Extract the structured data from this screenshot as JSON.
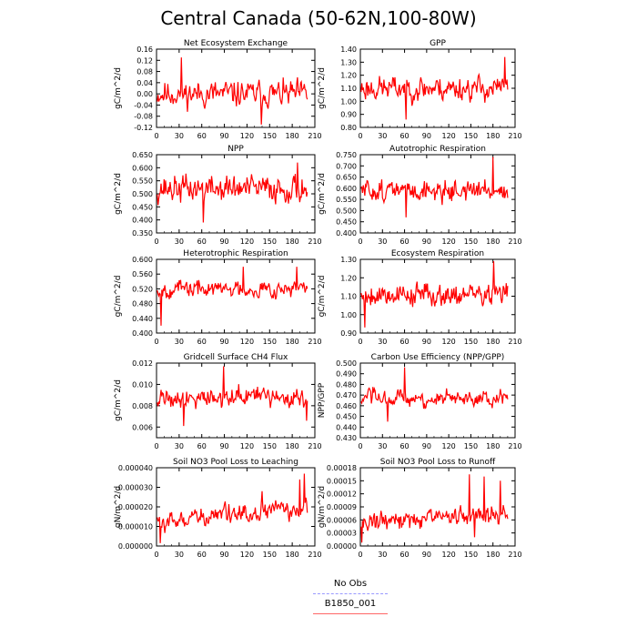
{
  "title": "Central Canada (50-62N,100-80W)",
  "colors": {
    "line": "#ff0000",
    "no_obs": "#9999ff",
    "b1850": "#ff6666"
  },
  "legend": {
    "items": [
      {
        "label": "No Obs",
        "style": "dashed",
        "color": "#9999ff"
      },
      {
        "label": "B1850_001",
        "style": "solid",
        "color": "#ff6666"
      }
    ]
  },
  "chart_data": [
    {
      "type": "line",
      "title": "Net Ecosystem Exchange",
      "ylabel": "gC/m^2/d",
      "xlim": [
        0,
        210
      ],
      "ylim": [
        -0.12,
        0.16
      ],
      "xticks": [
        0,
        30,
        60,
        90,
        120,
        150,
        180,
        210
      ],
      "yticks": [
        -0.12,
        -0.08,
        -0.04,
        0.0,
        0.04,
        0.08,
        0.12,
        0.16
      ],
      "yticklabels": [
        "-0.12",
        "-0.08",
        "-0.04",
        "0.00",
        "0.04",
        "0.08",
        "0.12",
        "0.16"
      ],
      "series": [
        {
          "mean": 0.0,
          "amp": 0.045,
          "min": -0.1,
          "max": 0.13,
          "seed": 11,
          "trend": 0,
          "spikes": [
            [
              33,
              0.13
            ],
            [
              139,
              -0.11
            ]
          ]
        }
      ]
    },
    {
      "type": "line",
      "title": "GPP",
      "ylabel": "gC/m^2/d",
      "xlim": [
        0,
        210
      ],
      "ylim": [
        0.8,
        1.4
      ],
      "xticks": [
        0,
        30,
        60,
        90,
        120,
        150,
        180,
        210
      ],
      "yticks": [
        0.8,
        0.9,
        1.0,
        1.1,
        1.2,
        1.3,
        1.4
      ],
      "yticklabels": [
        "0.80",
        "0.90",
        "1.00",
        "1.10",
        "1.20",
        "1.30",
        "1.40"
      ],
      "series": [
        {
          "mean": 1.1,
          "amp": 0.09,
          "min": 0.86,
          "max": 1.34,
          "seed": 23,
          "trend": 0.0,
          "spikes": [
            [
              196,
              1.34
            ],
            [
              62,
              0.86
            ]
          ]
        }
      ]
    },
    {
      "type": "line",
      "title": "NPP",
      "ylabel": "gC/m^2/d",
      "xlim": [
        0,
        210
      ],
      "ylim": [
        0.35,
        0.65
      ],
      "xticks": [
        0,
        30,
        60,
        90,
        120,
        150,
        180,
        210
      ],
      "yticks": [
        0.35,
        0.4,
        0.45,
        0.5,
        0.55,
        0.6,
        0.65
      ],
      "yticklabels": [
        "0.350",
        "0.400",
        "0.450",
        "0.500",
        "0.550",
        "0.600",
        "0.650"
      ],
      "series": [
        {
          "mean": 0.52,
          "amp": 0.05,
          "min": 0.39,
          "max": 0.62,
          "seed": 37,
          "trend": 0,
          "spikes": [
            [
              187,
              0.62
            ],
            [
              62,
              0.39
            ]
          ]
        }
      ]
    },
    {
      "type": "line",
      "title": "Autotrophic Respiration",
      "ylabel": "gC/m^2/d",
      "xlim": [
        0,
        210
      ],
      "ylim": [
        0.4,
        0.75
      ],
      "xticks": [
        0,
        30,
        60,
        90,
        120,
        150,
        180,
        210
      ],
      "yticks": [
        0.4,
        0.45,
        0.5,
        0.55,
        0.6,
        0.65,
        0.7,
        0.75
      ],
      "yticklabels": [
        "0.400",
        "0.450",
        "0.500",
        "0.550",
        "0.600",
        "0.650",
        "0.700",
        "0.750"
      ],
      "series": [
        {
          "mean": 0.59,
          "amp": 0.045,
          "min": 0.47,
          "max": 0.74,
          "seed": 51,
          "trend": 0,
          "spikes": [
            [
              180,
              0.74
            ],
            [
              62,
              0.47
            ]
          ]
        }
      ]
    },
    {
      "type": "line",
      "title": "Heterotrophic Respiration",
      "ylabel": "gC/m^2/d",
      "xlim": [
        0,
        210
      ],
      "ylim": [
        0.4,
        0.6
      ],
      "xticks": [
        0,
        30,
        60,
        90,
        120,
        150,
        180,
        210
      ],
      "yticks": [
        0.4,
        0.44,
        0.48,
        0.52,
        0.56,
        0.6
      ],
      "yticklabels": [
        "0.400",
        "0.440",
        "0.480",
        "0.520",
        "0.560",
        "0.600"
      ],
      "series": [
        {
          "mean": 0.52,
          "amp": 0.022,
          "min": 0.42,
          "max": 0.585,
          "seed": 67,
          "trend": 0,
          "spikes": [
            [
              6,
              0.42
            ],
            [
              115,
              0.58
            ],
            [
              186,
              0.58
            ]
          ]
        }
      ]
    },
    {
      "type": "line",
      "title": "Ecosystem Respiration",
      "ylabel": "gC/m^2/d",
      "xlim": [
        0,
        210
      ],
      "ylim": [
        0.9,
        1.3
      ],
      "xticks": [
        0,
        30,
        60,
        90,
        120,
        150,
        180,
        210
      ],
      "yticks": [
        0.9,
        1.0,
        1.1,
        1.2,
        1.3
      ],
      "yticklabels": [
        "0.90",
        "1.00",
        "1.10",
        "1.20",
        "1.30"
      ],
      "series": [
        {
          "mean": 1.11,
          "amp": 0.06,
          "min": 0.93,
          "max": 1.29,
          "seed": 79,
          "trend": 0,
          "spikes": [
            [
              181,
              1.29
            ],
            [
              6,
              0.93
            ]
          ]
        }
      ]
    },
    {
      "type": "line",
      "title": "Gridcell Surface CH4 Flux",
      "ylabel": "gC/m^2/d",
      "xlim": [
        0,
        210
      ],
      "ylim": [
        0.005,
        0.012
      ],
      "xticks": [
        0,
        30,
        60,
        90,
        120,
        150,
        180,
        210
      ],
      "yticks": [
        0.006,
        0.008,
        0.01,
        0.012
      ],
      "yticklabels": [
        "0.006",
        "0.008",
        "0.010",
        "0.012"
      ],
      "series": [
        {
          "mean": 0.0088,
          "amp": 0.0009,
          "min": 0.0061,
          "max": 0.0117,
          "seed": 91,
          "trend": 0,
          "spikes": [
            [
              89,
              0.0117
            ],
            [
              36,
              0.0061
            ],
            [
              199,
              0.0066
            ]
          ]
        }
      ]
    },
    {
      "type": "line",
      "title": "Carbon Use Efficiency (NPP/GPP)",
      "ylabel": "NPP/GPP",
      "xlim": [
        0,
        210
      ],
      "ylim": [
        0.43,
        0.5
      ],
      "xticks": [
        0,
        30,
        60,
        90,
        120,
        150,
        180,
        210
      ],
      "yticks": [
        0.43,
        0.44,
        0.45,
        0.46,
        0.47,
        0.48,
        0.49,
        0.5
      ],
      "yticklabels": [
        "0.430",
        "0.440",
        "0.450",
        "0.460",
        "0.470",
        "0.480",
        "0.490",
        "0.500"
      ],
      "series": [
        {
          "mean": 0.466,
          "amp": 0.008,
          "min": 0.445,
          "max": 0.496,
          "seed": 103,
          "trend": 0,
          "spikes": [
            [
              60,
              0.496
            ],
            [
              37,
              0.445
            ]
          ]
        }
      ]
    },
    {
      "type": "line",
      "title": "Soil NO3 Pool Loss to Leaching",
      "ylabel": "gN/m^2/d",
      "xlim": [
        0,
        210
      ],
      "ylim": [
        0.0,
        4e-05
      ],
      "xticks": [
        0,
        30,
        60,
        90,
        120,
        150,
        180,
        210
      ],
      "yticks": [
        0.0,
        1e-05,
        2e-05,
        3e-05,
        4e-05
      ],
      "yticklabels": [
        "0.000000",
        "0.000010",
        "0.000020",
        "0.000030",
        "0.000040"
      ],
      "series": [
        {
          "mean": 1.2e-05,
          "amp": 4.5e-06,
          "min": 1.5e-06,
          "max": 3.7e-05,
          "seed": 117,
          "trend": 4e-08,
          "spikes": [
            [
              5,
              1.5e-06
            ],
            [
              196,
              3.7e-05
            ],
            [
              190,
              3.4e-05
            ],
            [
              140,
              2.8e-05
            ]
          ]
        }
      ]
    },
    {
      "type": "line",
      "title": "Soil NO3 Pool Loss to Runoff",
      "ylabel": "gN/m^2/d",
      "xlim": [
        0,
        210
      ],
      "ylim": [
        0.0,
        0.00018
      ],
      "xticks": [
        0,
        30,
        60,
        90,
        120,
        150,
        180,
        210
      ],
      "yticks": [
        0.0,
        3e-05,
        6e-05,
        9e-05,
        0.00012,
        0.00015,
        0.00018
      ],
      "yticklabels": [
        "0.00000",
        "0.00003",
        "0.00006",
        "0.00009",
        "0.00012",
        "0.00015",
        "0.00018"
      ],
      "series": [
        {
          "mean": 5.5e-05,
          "amp": 2e-05,
          "min": 8e-06,
          "max": 0.000165,
          "seed": 131,
          "trend": 1e-07,
          "spikes": [
            [
              2,
              8e-06
            ],
            [
              148,
              0.000165
            ],
            [
              168,
              0.00016
            ],
            [
              190,
              0.00015
            ],
            [
              155,
              2e-05
            ]
          ]
        }
      ]
    }
  ]
}
